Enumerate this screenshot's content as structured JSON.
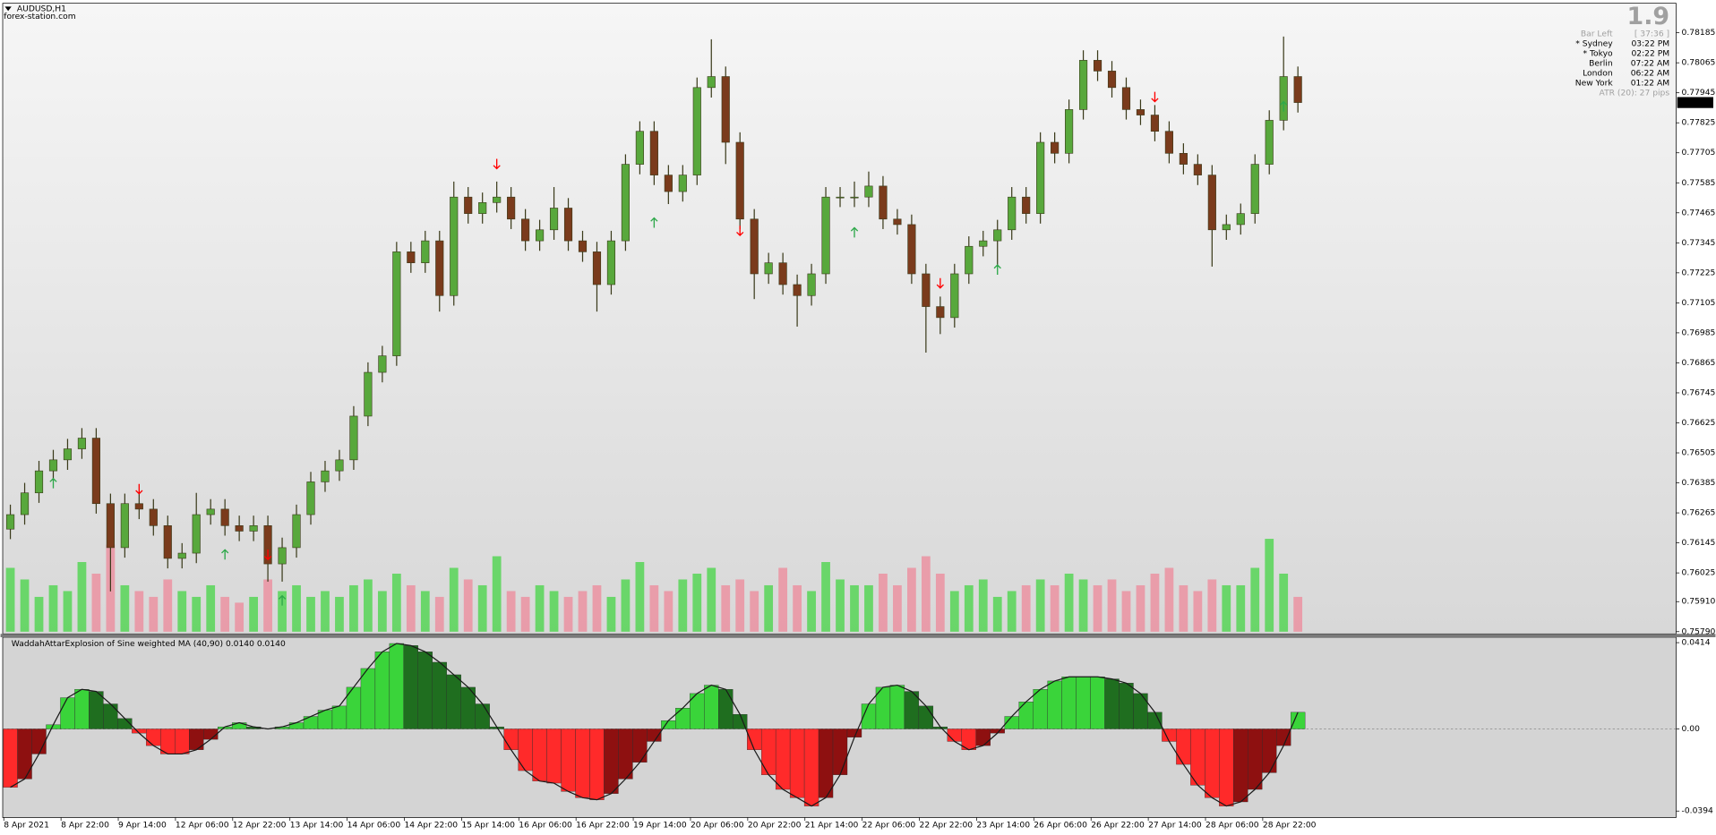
{
  "header": {
    "symbol": "AUDUSD,H1",
    "source": "forex-station.com"
  },
  "info_panel": {
    "version": "1.9",
    "bar_left_label": "Bar Left",
    "bar_left_value": "[ 37:36 ]",
    "sessions": [
      {
        "name": "* Sydney",
        "time": "03:22 PM",
        "color": "#ff0000"
      },
      {
        "name": "* Tokyo",
        "time": "02:22 PM",
        "color": "#ff0000"
      },
      {
        "name": "Berlin",
        "time": "07:22 AM",
        "color": "#a0a0a0"
      },
      {
        "name": "London",
        "time": "06:22 AM",
        "color": "#a0a0a0"
      },
      {
        "name": "New York",
        "time": "01:22 AM",
        "color": "#a0a0a0"
      }
    ],
    "atr": "ATR (20): 27 pips"
  },
  "chart_data": [
    {
      "type": "candlestick",
      "categories": [
        "8 Apr 2021",
        null,
        null,
        null,
        "8 Apr 22:00",
        null,
        null,
        null,
        "9 Apr 14:00",
        null,
        null,
        null,
        "12 Apr 06:00",
        null,
        null,
        null,
        "12 Apr 22:00",
        null,
        null,
        null,
        "13 Apr 14:00",
        null,
        null,
        null,
        "14 Apr 06:00",
        null,
        null,
        null,
        "14 Apr 22:00",
        null,
        null,
        null,
        "15 Apr 14:00",
        null,
        null,
        null,
        "16 Apr 06:00",
        null,
        null,
        null,
        "16 Apr 22:00",
        null,
        null,
        null,
        "19 Apr 14:00",
        null,
        null,
        null,
        "20 Apr 06:00",
        null,
        null,
        null,
        "20 Apr 22:00",
        null,
        null,
        null,
        "21 Apr 14:00",
        null,
        null,
        null,
        "22 Apr 06:00",
        null,
        null,
        null,
        "22 Apr 22:00",
        null,
        null,
        null,
        "23 Apr 14:00",
        null,
        null,
        null,
        "26 Apr 06:00",
        null,
        null,
        null,
        "26 Apr 22:00",
        null,
        null,
        null,
        "27 Apr 14:00",
        null,
        null,
        null,
        "28 Apr 06:00",
        null,
        null,
        null,
        "28 Apr 22:00",
        null,
        null
      ],
      "open": [
        0.762,
        0.76258,
        0.76345,
        0.76433,
        0.76477,
        0.76521,
        0.76564,
        0.76302,
        0.76126,
        0.76302,
        0.7628,
        0.76214,
        0.76083,
        0.76104,
        0.76258,
        0.7628,
        0.76214,
        0.76192,
        0.76214,
        0.76061,
        0.76126,
        0.76258,
        0.76389,
        0.76433,
        0.76477,
        0.76652,
        0.76827,
        0.76893,
        0.77309,
        0.77265,
        0.77353,
        0.77134,
        0.77528,
        0.77462,
        0.77506,
        0.77528,
        0.7744,
        0.77353,
        0.77397,
        0.77484,
        0.77353,
        0.77309,
        0.77178,
        0.77353,
        0.77659,
        0.77791,
        0.77616,
        0.7755,
        0.77616,
        0.77966,
        0.7801,
        0.77747,
        0.7744,
        0.77221,
        0.77265,
        0.77178,
        0.77134,
        0.77221,
        0.77528,
        0.77528,
        0.77528,
        0.77572,
        0.7744,
        0.77418,
        0.77221,
        0.7709,
        0.77046,
        0.77221,
        0.77331,
        0.77353,
        0.77397,
        0.77528,
        0.77462,
        0.77747,
        0.77703,
        0.77878,
        0.78075,
        0.78032,
        0.77966,
        0.77878,
        0.77856,
        0.77791,
        0.77703,
        0.77659,
        0.77616,
        0.77397,
        0.77418,
        0.77462,
        0.77659,
        0.77835,
        0.7801
      ],
      "high": [
        0.76298,
        0.76385,
        0.76473,
        0.76517,
        0.76561,
        0.76604,
        0.76604,
        0.76342,
        0.76342,
        0.76342,
        0.7632,
        0.76254,
        0.76144,
        0.76345,
        0.7632,
        0.7632,
        0.76254,
        0.76254,
        0.76254,
        0.76166,
        0.76298,
        0.76429,
        0.76473,
        0.76517,
        0.76692,
        0.76867,
        0.76933,
        0.77349,
        0.77349,
        0.77393,
        0.77393,
        0.7759,
        0.77568,
        0.77546,
        0.7759,
        0.77568,
        0.7748,
        0.77437,
        0.77568,
        0.77524,
        0.77393,
        0.77349,
        0.77393,
        0.77699,
        0.77831,
        0.77831,
        0.77656,
        0.77656,
        0.78006,
        0.78159,
        0.7805,
        0.77787,
        0.7748,
        0.77305,
        0.77305,
        0.77218,
        0.77261,
        0.77568,
        0.77568,
        0.7759,
        0.7763,
        0.77612,
        0.7748,
        0.77458,
        0.77261,
        0.7713,
        0.77261,
        0.77371,
        0.77393,
        0.77437,
        0.77568,
        0.77568,
        0.77787,
        0.77787,
        0.77918,
        0.78115,
        0.78115,
        0.78072,
        0.78006,
        0.77918,
        0.77896,
        0.77831,
        0.77743,
        0.77699,
        0.77656,
        0.77458,
        0.77502,
        0.77699,
        0.77875,
        0.7817,
        0.7805
      ],
      "low": [
        0.7616,
        0.76218,
        0.76305,
        0.76393,
        0.76437,
        0.76481,
        0.76262,
        0.75951,
        0.76086,
        0.7624,
        0.76174,
        0.76043,
        0.76043,
        0.76064,
        0.76218,
        0.76174,
        0.76152,
        0.76152,
        0.7599,
        0.7599,
        0.76086,
        0.76218,
        0.76349,
        0.76393,
        0.76437,
        0.76612,
        0.76787,
        0.76853,
        0.77225,
        0.77225,
        0.7707,
        0.77094,
        0.77422,
        0.77422,
        0.77466,
        0.774,
        0.77313,
        0.77313,
        0.77357,
        0.77313,
        0.77269,
        0.7707,
        0.77138,
        0.77313,
        0.77619,
        0.77576,
        0.775,
        0.7751,
        0.77576,
        0.77926,
        0.7766,
        0.774,
        0.7712,
        0.77181,
        0.77138,
        0.7701,
        0.77094,
        0.77181,
        0.77488,
        0.77488,
        0.77488,
        0.774,
        0.77378,
        0.77181,
        0.76906,
        0.7698,
        0.77006,
        0.77181,
        0.77291,
        0.7725,
        0.77357,
        0.77422,
        0.77422,
        0.77663,
        0.77663,
        0.77838,
        0.77992,
        0.77926,
        0.77838,
        0.77816,
        0.77751,
        0.77663,
        0.77619,
        0.77576,
        0.7725,
        0.77357,
        0.77378,
        0.77422,
        0.77619,
        0.77795,
        0.77866
      ],
      "close": [
        0.76258,
        0.76345,
        0.76433,
        0.76477,
        0.76521,
        0.76564,
        0.76302,
        0.76126,
        0.76302,
        0.7628,
        0.76214,
        0.76083,
        0.76104,
        0.76258,
        0.7628,
        0.76214,
        0.76192,
        0.76214,
        0.76061,
        0.76126,
        0.76258,
        0.76389,
        0.76433,
        0.76477,
        0.76652,
        0.76827,
        0.76893,
        0.77309,
        0.77265,
        0.77353,
        0.77134,
        0.77528,
        0.77462,
        0.77506,
        0.77528,
        0.7744,
        0.77353,
        0.77397,
        0.77484,
        0.77353,
        0.77309,
        0.77178,
        0.77353,
        0.77659,
        0.77791,
        0.77616,
        0.7755,
        0.77616,
        0.77966,
        0.7801,
        0.77747,
        0.7744,
        0.77221,
        0.77265,
        0.77178,
        0.77134,
        0.77221,
        0.77528,
        0.77528,
        0.77528,
        0.77572,
        0.7744,
        0.77418,
        0.77221,
        0.7709,
        0.77046,
        0.77221,
        0.77331,
        0.77353,
        0.77397,
        0.77528,
        0.77462,
        0.77747,
        0.77703,
        0.77878,
        0.78075,
        0.78032,
        0.77966,
        0.77878,
        0.77856,
        0.77791,
        0.77703,
        0.77659,
        0.77616,
        0.77397,
        0.77418,
        0.77462,
        0.77659,
        0.77835,
        0.7801,
        0.77906
      ],
      "volume": [
        55,
        45,
        30,
        40,
        35,
        60,
        50,
        75,
        40,
        35,
        30,
        45,
        35,
        30,
        40,
        30,
        25,
        30,
        45,
        35,
        40,
        30,
        35,
        30,
        40,
        45,
        35,
        50,
        40,
        35,
        30,
        55,
        45,
        40,
        65,
        35,
        30,
        40,
        35,
        30,
        35,
        40,
        30,
        45,
        60,
        40,
        35,
        45,
        50,
        55,
        40,
        45,
        35,
        40,
        55,
        40,
        35,
        60,
        45,
        40,
        40,
        50,
        40,
        55,
        65,
        50,
        35,
        40,
        45,
        30,
        35,
        40,
        45,
        40,
        50,
        45,
        40,
        45,
        35,
        40,
        50,
        55,
        40,
        35,
        45,
        40,
        40,
        55,
        80,
        50,
        30
      ],
      "sell_signals": [
        null,
        null,
        null,
        null,
        null,
        null,
        null,
        null,
        null,
        0.76359,
        null,
        null,
        null,
        null,
        null,
        null,
        null,
        null,
        0.76096,
        null,
        null,
        null,
        null,
        null,
        null,
        null,
        null,
        null,
        null,
        null,
        null,
        null,
        null,
        null,
        0.77659,
        null,
        null,
        null,
        null,
        null,
        null,
        null,
        null,
        null,
        null,
        null,
        null,
        null,
        null,
        null,
        null,
        0.77392,
        null,
        null,
        null,
        null,
        null,
        null,
        null,
        null,
        null,
        null,
        null,
        null,
        null,
        0.77182,
        null,
        null,
        null,
        null,
        null,
        null,
        null,
        null,
        null,
        null,
        null,
        null,
        null,
        null,
        0.77927,
        null,
        null,
        null,
        null,
        null,
        null,
        null,
        null,
        null,
        null
      ],
      "buy_signals": [
        null,
        null,
        null,
        0.76385,
        null,
        null,
        null,
        null,
        null,
        null,
        null,
        null,
        null,
        null,
        null,
        0.761,
        null,
        null,
        null,
        0.75916,
        null,
        null,
        null,
        null,
        null,
        null,
        null,
        null,
        null,
        null,
        null,
        null,
        null,
        null,
        null,
        null,
        null,
        null,
        null,
        null,
        null,
        null,
        null,
        null,
        null,
        0.77427,
        null,
        null,
        null,
        null,
        null,
        null,
        null,
        null,
        null,
        null,
        null,
        null,
        null,
        0.77388,
        null,
        null,
        null,
        null,
        null,
        null,
        null,
        null,
        null,
        0.77239,
        null,
        null,
        null,
        null,
        null,
        null,
        null,
        null,
        null,
        null,
        null,
        null,
        null,
        null,
        null,
        null,
        null,
        null,
        null,
        0.77892,
        null
      ],
      "up_color": "#58a83c",
      "down_color": "#7a3b1c",
      "wick_color": "#3a3a1a",
      "volume_up_color": "#44d444",
      "volume_down_color": "#ee8899",
      "sell_color": "#ff0000",
      "buy_color": "#2ea84a",
      "last_price": 0.77906,
      "ylim": [
        0.75781,
        0.78303
      ],
      "yticks": [
        0.78185,
        0.78065,
        0.77945,
        0.77825,
        0.77705,
        0.77585,
        0.77465,
        0.77345,
        0.77225,
        0.77105,
        0.76985,
        0.76865,
        0.76745,
        0.76625,
        0.76505,
        0.76385,
        0.76265,
        0.76145,
        0.76025,
        {
          "value": 0.7591,
          "label": "0.75910"
        },
        {
          "value": 0.7579,
          "label": "0.75790"
        }
      ]
    },
    {
      "type": "bar",
      "title": "WaddahAttarExplosion of Sine weighted MA (40,90) 0.0140 0.0140",
      "values": [
        -0.028,
        -0.024,
        -0.012,
        0.002,
        0.015,
        0.019,
        0.018,
        0.012,
        0.005,
        -0.002,
        -0.008,
        -0.012,
        -0.012,
        -0.01,
        -0.005,
        0.001,
        0.003,
        0.001,
        0,
        0.001,
        0.003,
        0.006,
        0.009,
        0.011,
        0.02,
        0.029,
        0.037,
        0.041,
        0.04,
        0.037,
        0.032,
        0.026,
        0.02,
        0.012,
        0.001,
        -0.01,
        -0.02,
        -0.025,
        -0.026,
        -0.03,
        -0.033,
        -0.034,
        -0.031,
        -0.024,
        -0.016,
        -0.006,
        0.004,
        0.01,
        0.017,
        0.021,
        0.019,
        0.007,
        -0.01,
        -0.022,
        -0.029,
        -0.033,
        -0.037,
        -0.033,
        -0.022,
        -0.004,
        0.012,
        0.02,
        0.021,
        0.018,
        0.011,
        0.001,
        -0.006,
        -0.01,
        -0.008,
        -0.002,
        0.006,
        0.013,
        0.019,
        0.023,
        0.025,
        0.025,
        0.025,
        0.024,
        0.022,
        0.017,
        0.008,
        -0.006,
        -0.017,
        -0.027,
        -0.033,
        -0.037,
        -0.035,
        -0.029,
        -0.021,
        -0.008,
        0.008
      ],
      "colors": {
        "rising_positive": "#3ad43a",
        "falling_positive": "#1f6e1f",
        "falling_negative": "#ff2a2a",
        "rising_negative": "#8e1010"
      },
      "line_color": "#1a1a1a",
      "ylim": [
        -0.0425,
        0.0435
      ],
      "yticks": [
        0.0414,
        {
          "value": 0,
          "label": "0.00"
        },
        -0.0394
      ]
    }
  ]
}
